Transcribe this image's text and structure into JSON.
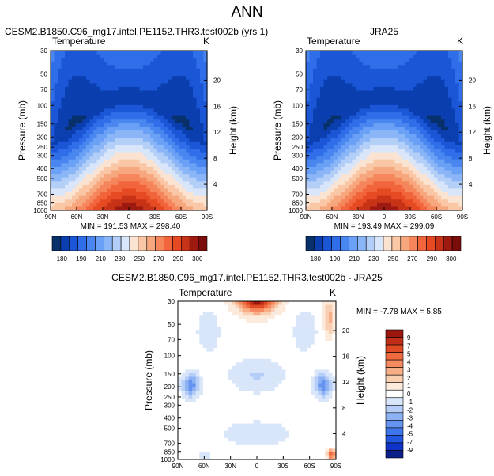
{
  "page_title": "ANN",
  "colors": {
    "main_scale": [
      "#08306b",
      "#0b3fb0",
      "#1a56d6",
      "#2f6ee8",
      "#4a86f0",
      "#6aa0f5",
      "#8ab6f7",
      "#b3cff7",
      "#d9e6fa",
      "#fbe3d2",
      "#f9c7a6",
      "#f7a77d",
      "#f5855a",
      "#f2653c",
      "#e64a22",
      "#c73317",
      "#9e1a10",
      "#7a0d0a"
    ],
    "diff_scale": [
      "#0b1f8a",
      "#1033c7",
      "#2356e0",
      "#3f75ea",
      "#6594f0",
      "#8db2f4",
      "#b5cdf7",
      "#d9e6fa",
      "#ffffff",
      "#fcebdc",
      "#f9cfb2",
      "#f7ad86",
      "#f58a60",
      "#ef6a3e",
      "#e04a24",
      "#c12e17",
      "#9a170f"
    ]
  },
  "chart_data": [
    {
      "id": "test",
      "type": "contour",
      "title": "CESM2.B1850.C96_mg17.intel.PE1152.THR3.test002b (yrs 1)",
      "variable": "Temperature",
      "units": "K",
      "ylabel": "Pressure (mb)",
      "y2label": "Height (km)",
      "xticks": [
        "90N",
        "60N",
        "30N",
        "0",
        "30S",
        "60S",
        "90S"
      ],
      "yticks": [
        "30",
        "50",
        "70",
        "100",
        "150",
        "200",
        "250",
        "300",
        "400",
        "500",
        "700",
        "850",
        "1000"
      ],
      "y2ticks": [
        "20",
        "16",
        "12",
        "8",
        "4"
      ],
      "min": "191.53",
      "max": "298.40",
      "stats": "MIN = 191.53   MAX = 298.40",
      "colorbar_labels": [
        "180",
        "190",
        "210",
        "230",
        "250",
        "270",
        "290",
        "300"
      ]
    },
    {
      "id": "ref",
      "type": "contour",
      "title": "JRA25",
      "variable": "Temperature",
      "units": "K",
      "ylabel": "Pressure (mb)",
      "y2label": "Height (km)",
      "xticks": [
        "90N",
        "60N",
        "30N",
        "0",
        "30S",
        "60S",
        "90S"
      ],
      "yticks": [
        "30",
        "50",
        "70",
        "100",
        "150",
        "200",
        "250",
        "300",
        "400",
        "500",
        "700",
        "850",
        "1000"
      ],
      "y2ticks": [
        "20",
        "16",
        "12",
        "8",
        "4"
      ],
      "min": "193.49",
      "max": "299.09",
      "stats": "MIN = 193.49   MAX = 299.09",
      "colorbar_labels": [
        "180",
        "190",
        "210",
        "230",
        "250",
        "270",
        "290",
        "300"
      ]
    },
    {
      "id": "diff",
      "type": "contour",
      "title": "CESM2.B1850.C96_mg17.intel.PE1152.THR3.test002b - JRA25",
      "variable": "Temperature",
      "units": "K",
      "ylabel": "Pressure (mb)",
      "y2label": "Height (km)",
      "xticks": [
        "90N",
        "60N",
        "30N",
        "0",
        "30S",
        "60S",
        "90S"
      ],
      "yticks": [
        "30",
        "50",
        "70",
        "100",
        "150",
        "200",
        "250",
        "300",
        "400",
        "500",
        "700",
        "850",
        "1000"
      ],
      "y2ticks": [
        "20",
        "16",
        "12",
        "8",
        "4"
      ],
      "min": "-7.78",
      "max": "5.85",
      "stats": "MIN = -7.78  MAX =  5.85",
      "colorbar_labels": [
        "9",
        "7",
        "5",
        "4",
        "3",
        "2",
        "1",
        "0",
        "-1",
        "-2",
        "-3",
        "-4",
        "-5",
        "-7",
        "-9"
      ]
    }
  ]
}
